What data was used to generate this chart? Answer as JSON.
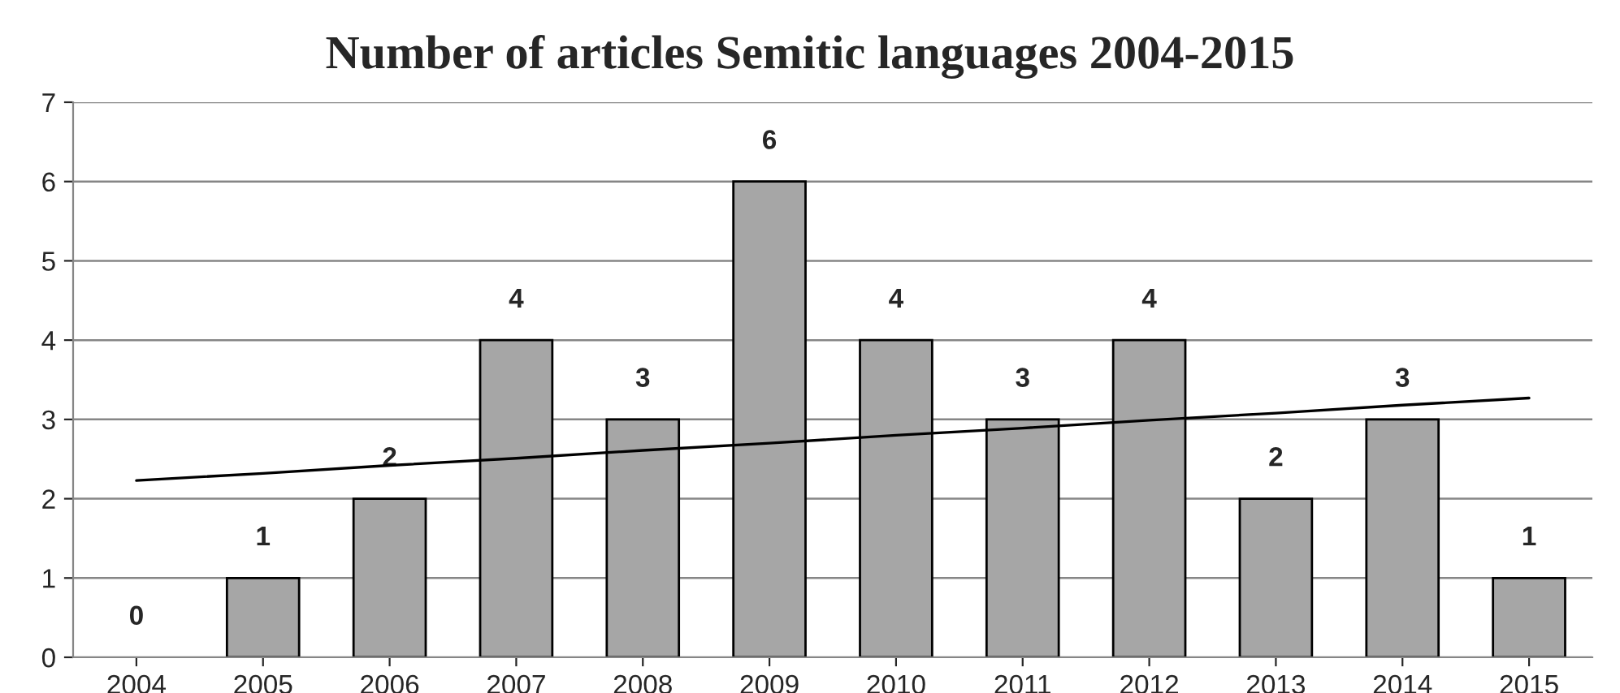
{
  "chart_data": {
    "type": "bar",
    "title": "Number of articles Semitic languages 2004-2015",
    "categories": [
      "2004",
      "2005",
      "2006",
      "2007",
      "2008",
      "2009",
      "2010",
      "2011",
      "2012",
      "2013",
      "2014",
      "2015"
    ],
    "series": [
      {
        "color": "#a6a6a6",
        "values": [
          0,
          1,
          2,
          4,
          3,
          6,
          4,
          3,
          4,
          2,
          3,
          1
        ],
        "value_labels": [
          "0",
          "1",
          "2",
          "4",
          "3",
          "6",
          "4",
          "3",
          "4",
          "2",
          "3",
          "1"
        ]
      },
      {
        "type": "line",
        "color": "#000000",
        "values": [
          2.23,
          2.32,
          2.42,
          2.51,
          2.61,
          2.7,
          2.8,
          2.89,
          2.99,
          3.08,
          3.18,
          3.27
        ]
      }
    ],
    "ylim": [
      0,
      7
    ],
    "yticks": [
      0,
      1,
      2,
      3,
      4,
      5,
      6,
      7
    ],
    "grid": "y"
  }
}
